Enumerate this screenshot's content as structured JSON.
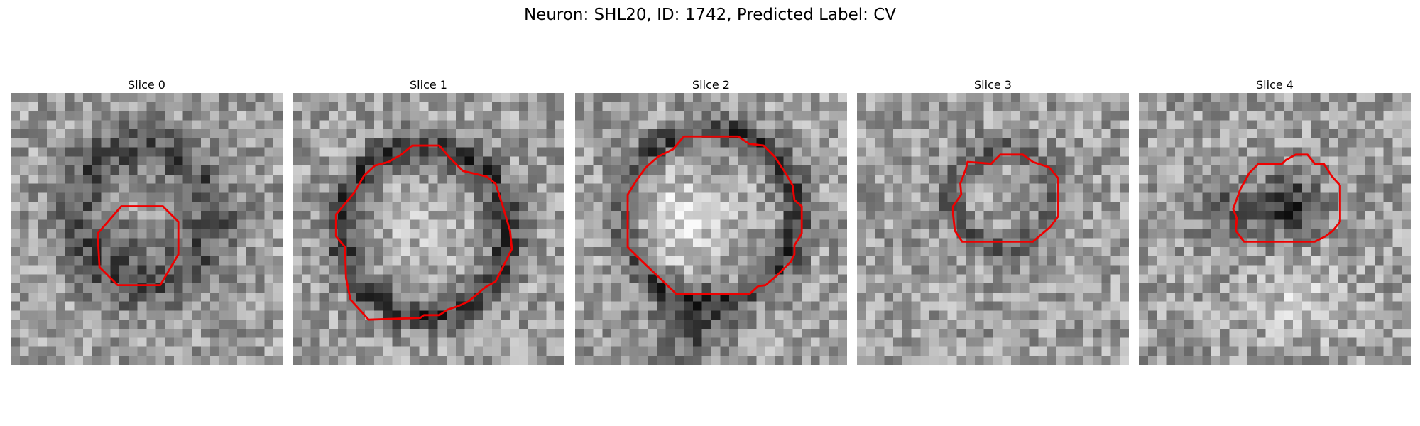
{
  "figure": {
    "title": "Neuron: SHL20, ID: 1742, Predicted Label: CV"
  },
  "slices": [
    {
      "label": "Slice 0",
      "kind": "small-dark-ring",
      "seed": 11
    },
    {
      "label": "Slice 1",
      "kind": "large-ring",
      "seed": 23
    },
    {
      "label": "Slice 2",
      "kind": "bright-vesicle",
      "seed": 37
    },
    {
      "label": "Slice 3",
      "kind": "faint-ring",
      "seed": 51
    },
    {
      "label": "Slice 4",
      "kind": "dark-blob",
      "seed": 67
    }
  ],
  "colors": {
    "contour": "#ee0000"
  }
}
